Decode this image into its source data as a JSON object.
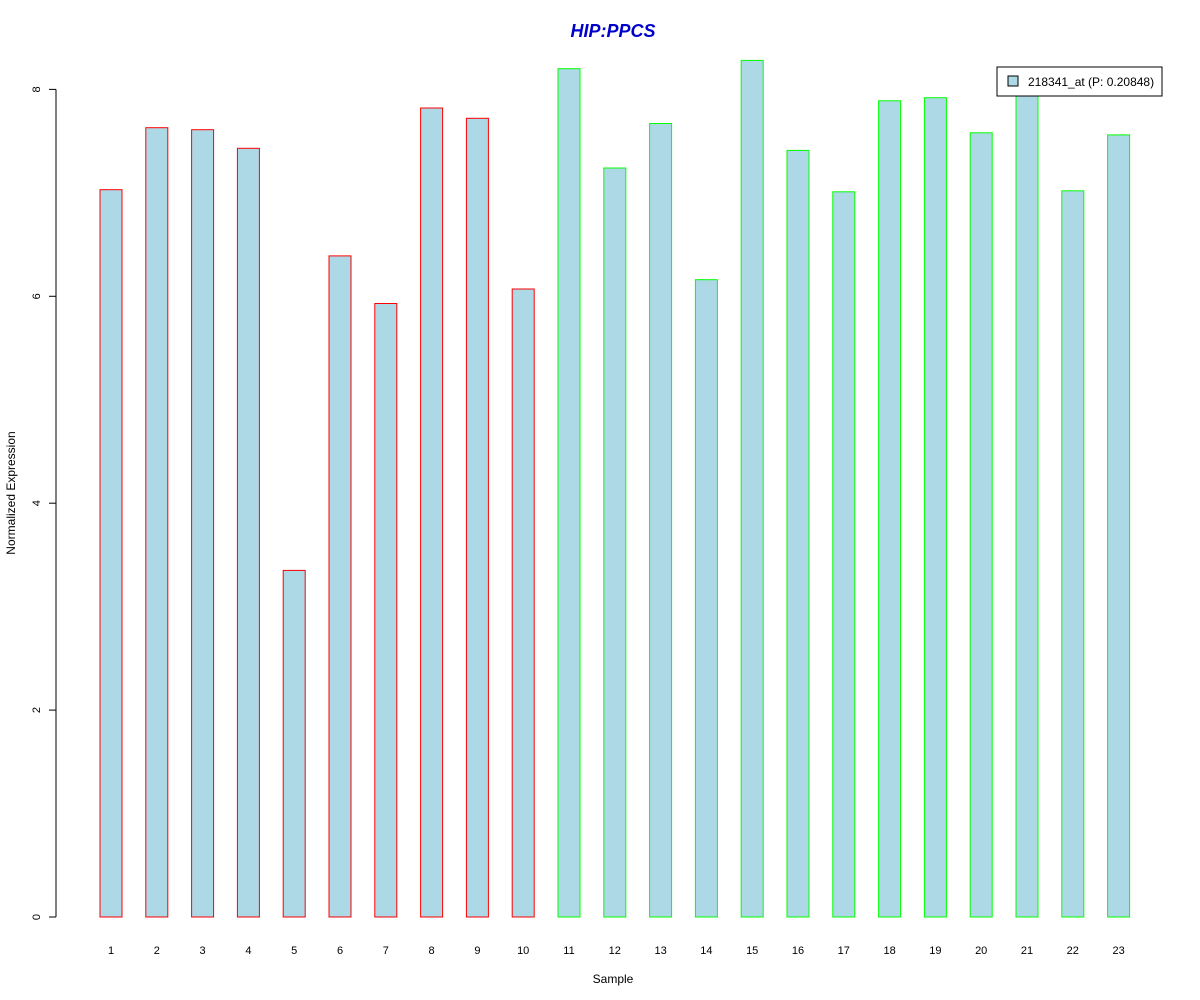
{
  "chart_data": {
    "type": "bar",
    "title": "HIP:PPCS",
    "title_color": "#0000cc",
    "xlabel": "Sample",
    "ylabel": "Normalized Expression",
    "categories": [
      "1",
      "2",
      "3",
      "4",
      "5",
      "6",
      "7",
      "8",
      "9",
      "10",
      "11",
      "12",
      "13",
      "14",
      "15",
      "16",
      "17",
      "18",
      "19",
      "20",
      "21",
      "22",
      "23"
    ],
    "series": [
      {
        "name": "218341_at (P: 0.20848)",
        "values": [
          7.03,
          7.63,
          7.61,
          7.43,
          3.35,
          6.39,
          5.93,
          7.82,
          7.72,
          6.07,
          8.2,
          7.24,
          7.67,
          6.16,
          8.28,
          7.41,
          7.01,
          7.89,
          7.92,
          7.58,
          7.97,
          7.02,
          7.56
        ],
        "fill": "#add8e6"
      }
    ],
    "groups": [
      {
        "samples": [
          "1",
          "2",
          "3",
          "4",
          "5",
          "6",
          "7",
          "8",
          "9",
          "10"
        ],
        "border_color": "#ff0000"
      },
      {
        "samples": [
          "11",
          "12",
          "13",
          "14",
          "15",
          "16",
          "17",
          "18",
          "19",
          "20",
          "21",
          "22",
          "23"
        ],
        "border_color": "#00ff00"
      }
    ],
    "yticks": [
      "0",
      "2",
      "4",
      "6",
      "8"
    ],
    "ylim": [
      0,
      8.4
    ],
    "grid": false,
    "legend_position": "top-right"
  }
}
